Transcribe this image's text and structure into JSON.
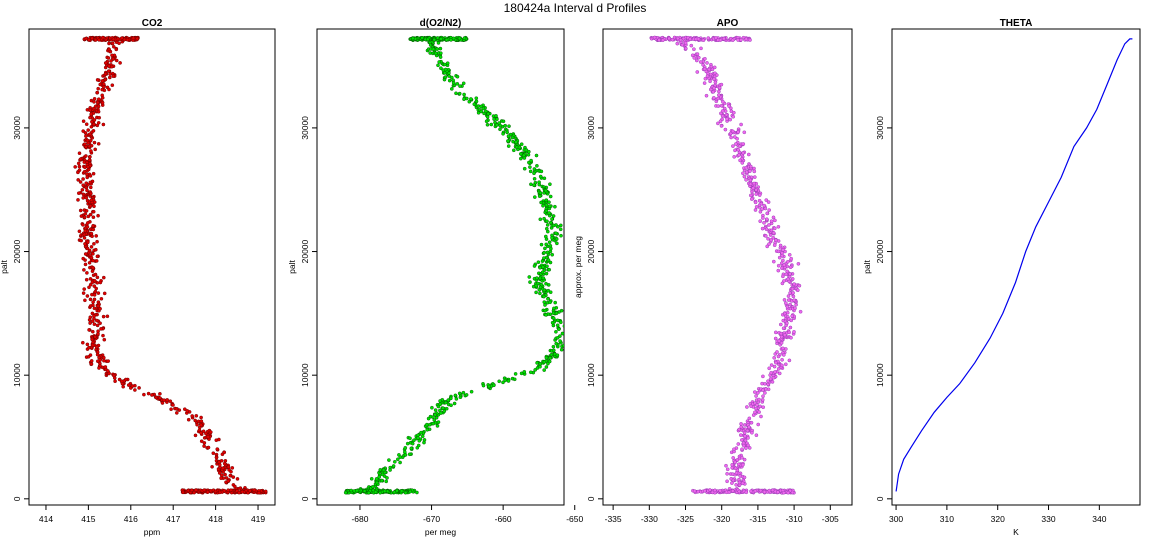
{
  "figure_title": "180424a   Interval d Profiles",
  "chart_data": [
    {
      "type": "scatter",
      "title": "CO2",
      "xlabel": "ppm",
      "ylabel": "palt",
      "xlim": [
        413.6,
        419.4
      ],
      "ylim": [
        -500,
        38000
      ],
      "xticks": [
        414,
        415,
        416,
        417,
        418,
        419
      ],
      "yticks": [
        0,
        10000,
        20000,
        30000
      ],
      "color": "#e00000",
      "edge_color": "#5a0000",
      "grid": false,
      "profile": [
        [
          415.6,
          37200
        ],
        [
          415.6,
          35500
        ],
        [
          415.3,
          33000
        ],
        [
          415.1,
          30000
        ],
        [
          414.9,
          27000
        ],
        [
          415.0,
          24000
        ],
        [
          415.0,
          21000
        ],
        [
          415.1,
          18000
        ],
        [
          415.2,
          15000
        ],
        [
          415.1,
          12500
        ],
        [
          415.3,
          10500
        ],
        [
          416.0,
          9200
        ],
        [
          416.8,
          8000
        ],
        [
          417.5,
          6500
        ],
        [
          417.9,
          4500
        ],
        [
          418.1,
          3000
        ],
        [
          418.3,
          1500
        ],
        [
          418.6,
          600
        ]
      ],
      "clusters": [
        {
          "x": [
            414.9,
            416.2
          ],
          "y": 37200
        },
        {
          "x": [
            417.2,
            419.2
          ],
          "y": 600
        }
      ]
    },
    {
      "type": "scatter",
      "title": "d(O2/N2)",
      "xlabel": "per meg",
      "ylabel": "palt",
      "xlim": [
        -686,
        -651.5
      ],
      "ylim": [
        -500,
        38000
      ],
      "xticks": [
        -680,
        -670,
        -660,
        -650
      ],
      "yticks": [
        0,
        10000,
        20000,
        30000
      ],
      "color": "#00e000",
      "edge_color": "#004400",
      "grid": false,
      "profile": [
        [
          -670,
          37200
        ],
        [
          -669,
          35500
        ],
        [
          -666,
          33000
        ],
        [
          -661,
          30500
        ],
        [
          -657,
          28000
        ],
        [
          -655,
          26000
        ],
        [
          -654,
          24000
        ],
        [
          -653,
          21000
        ],
        [
          -655,
          18000
        ],
        [
          -653,
          15000
        ],
        [
          -652,
          12500
        ],
        [
          -655,
          10500
        ],
        [
          -668,
          8000
        ],
        [
          -670,
          6000
        ],
        [
          -673,
          4000
        ],
        [
          -676,
          2500
        ],
        [
          -678,
          1200
        ],
        [
          -679,
          600
        ]
      ],
      "clusters": [
        {
          "x": [
            -673,
            -665
          ],
          "y": 37200
        },
        {
          "x": [
            -682,
            -672
          ],
          "y": 600
        }
      ]
    },
    {
      "type": "scatter",
      "title": "APO",
      "xlabel": "",
      "ylabel": "approx. per meg",
      "xlim": [
        -336.4,
        -302.0
      ],
      "ylim": [
        -500,
        38000
      ],
      "xticks": [
        -335,
        -330,
        -325,
        -320,
        -315,
        -310,
        -305
      ],
      "yticks": [
        0,
        10000,
        20000,
        30000
      ],
      "color": "#ee66ee",
      "edge_color": "#8833aa",
      "grid": false,
      "profile": [
        [
          -326,
          37200
        ],
        [
          -322,
          35000
        ],
        [
          -320,
          32000
        ],
        [
          -318,
          29000
        ],
        [
          -316,
          26000
        ],
        [
          -314,
          23000
        ],
        [
          -312,
          20000
        ],
        [
          -310,
          17000
        ],
        [
          -311,
          14000
        ],
        [
          -312,
          11000
        ],
        [
          -315,
          8000
        ],
        [
          -317,
          5000
        ],
        [
          -318,
          2500
        ],
        [
          -318,
          600
        ]
      ],
      "clusters": [
        {
          "x": [
            -330,
            -316
          ],
          "y": 37200
        },
        {
          "x": [
            -324,
            -310
          ],
          "y": 600
        }
      ]
    },
    {
      "type": "line",
      "title": "THETA",
      "xlabel": "K",
      "ylabel": "palt",
      "xlim": [
        299.2,
        348.0
      ],
      "ylim": [
        -500,
        38000
      ],
      "xticks": [
        300,
        310,
        320,
        330,
        340
      ],
      "yticks": [
        0,
        10000,
        20000,
        30000
      ],
      "color": "#0000ee",
      "grid": false,
      "points": [
        [
          300.0,
          600
        ],
        [
          300.5,
          2000
        ],
        [
          301.5,
          3200
        ],
        [
          303.0,
          4200
        ],
        [
          305.0,
          5500
        ],
        [
          307.5,
          7000
        ],
        [
          310.0,
          8200
        ],
        [
          312.5,
          9300
        ],
        [
          315.5,
          11000
        ],
        [
          318.5,
          13000
        ],
        [
          321.0,
          15000
        ],
        [
          323.5,
          17500
        ],
        [
          325.5,
          20000
        ],
        [
          327.5,
          22000
        ],
        [
          330.0,
          24000
        ],
        [
          332.5,
          26000
        ],
        [
          335.0,
          28500
        ],
        [
          337.5,
          30000
        ],
        [
          339.5,
          31500
        ],
        [
          341.5,
          33500
        ],
        [
          343.5,
          35500
        ],
        [
          345.0,
          36800
        ],
        [
          346.0,
          37200
        ],
        [
          346.5,
          37200
        ]
      ]
    }
  ]
}
